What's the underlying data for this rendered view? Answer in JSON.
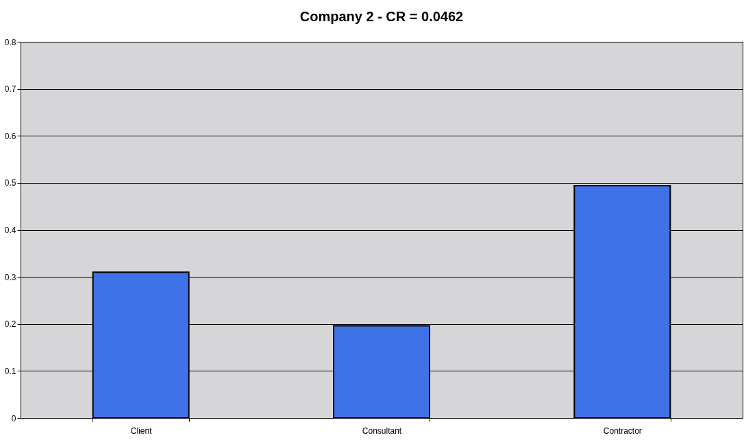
{
  "chart_data": {
    "type": "bar",
    "title": "Company 2 - CR = 0.0462",
    "categories": [
      "Client",
      "Consultant",
      "Contractor"
    ],
    "values": [
      0.31,
      0.196,
      0.494
    ],
    "color": "#3f72e6",
    "ylim": [
      0,
      0.8
    ],
    "yticks": [
      0,
      0.1,
      0.2,
      0.3,
      0.4,
      0.5,
      0.6,
      0.7,
      0.8
    ],
    "grid": "y"
  }
}
